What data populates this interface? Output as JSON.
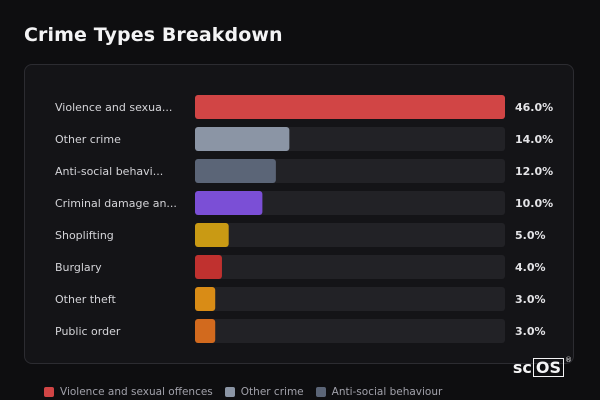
{
  "title": "Crime Types Breakdown",
  "chart_data": {
    "type": "bar",
    "orientation": "horizontal",
    "categories": [
      "Violence and sexua...",
      "Other crime",
      "Anti-social behavi...",
      "Criminal damage an...",
      "Shoplifting",
      "Burglary",
      "Other theft",
      "Public order"
    ],
    "values": [
      46.0,
      14.0,
      12.0,
      10.0,
      5.0,
      4.0,
      3.0,
      3.0
    ],
    "value_labels": [
      "46.0%",
      "14.0%",
      "12.0%",
      "10.0%",
      "5.0%",
      "4.0%",
      "3.0%",
      "3.0%"
    ],
    "colors": [
      "#d14545",
      "#8b95a5",
      "#5b6577",
      "#7b4fd6",
      "#c99a14",
      "#c0312f",
      "#d98c16",
      "#d26a1e"
    ],
    "xlim": [
      0,
      46
    ],
    "grid": false
  },
  "legend": [
    {
      "label": "Violence and sexual offences",
      "color": "#d14545"
    },
    {
      "label": "Other crime",
      "color": "#8b95a5"
    },
    {
      "label": "Anti-social behaviour",
      "color": "#5b6577"
    }
  ],
  "logo": {
    "text_plain": "sc",
    "text_boxed": "OS",
    "mark": "®"
  }
}
